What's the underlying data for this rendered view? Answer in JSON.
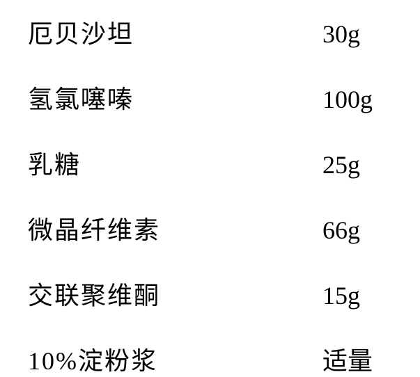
{
  "type": "table",
  "background_color": "#ffffff",
  "text_color": "#000000",
  "font_family": "SimSun",
  "font_size": 36,
  "row_spacing": 42,
  "letter_spacing": 2,
  "ingredients": [
    {
      "name": "厄贝沙坦",
      "amount": "30g"
    },
    {
      "name": "氢氯噻嗪",
      "amount": "100g"
    },
    {
      "name": "乳糖",
      "amount": "25g"
    },
    {
      "name": "微晶纤维素",
      "amount": "66g"
    },
    {
      "name": "交联聚维酮",
      "amount": "15g"
    },
    {
      "name": "10%淀粉浆",
      "amount": "适量"
    }
  ]
}
